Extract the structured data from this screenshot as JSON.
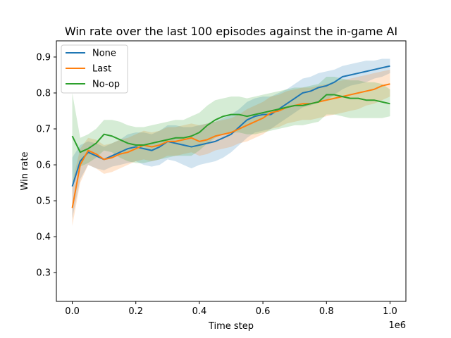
{
  "chart_data": {
    "type": "line",
    "title": "Win rate over the last 100 episodes against the in-game AI",
    "xlabel": "Time step",
    "ylabel": "Win rate",
    "x_offset_label": "1e6",
    "xlim": [
      -0.05,
      1.05
    ],
    "ylim": [
      0.22,
      0.945
    ],
    "x_ticks": [
      0.0,
      0.2,
      0.4,
      0.6,
      0.8,
      1.0
    ],
    "x_tick_labels": [
      "0.0",
      "0.2",
      "0.4",
      "0.6",
      "0.8",
      "1.0"
    ],
    "y_ticks": [
      0.3,
      0.4,
      0.5,
      0.6,
      0.7,
      0.8,
      0.9
    ],
    "y_tick_labels": [
      "0.3",
      "0.4",
      "0.5",
      "0.6",
      "0.7",
      "0.8",
      "0.9"
    ],
    "grid": false,
    "legend_position": "top-left",
    "x": [
      0.0,
      0.025,
      0.05,
      0.075,
      0.1,
      0.125,
      0.15,
      0.175,
      0.2,
      0.225,
      0.25,
      0.275,
      0.3,
      0.325,
      0.35,
      0.375,
      0.4,
      0.425,
      0.45,
      0.475,
      0.5,
      0.525,
      0.55,
      0.575,
      0.6,
      0.625,
      0.65,
      0.675,
      0.7,
      0.725,
      0.75,
      0.775,
      0.8,
      0.825,
      0.85,
      0.875,
      0.9,
      0.925,
      0.95,
      0.975,
      1.0
    ],
    "series": [
      {
        "name": "None",
        "color": "#1f77b4",
        "values": [
          0.54,
          0.61,
          0.635,
          0.625,
          0.615,
          0.625,
          0.635,
          0.645,
          0.65,
          0.645,
          0.64,
          0.65,
          0.665,
          0.66,
          0.655,
          0.65,
          0.655,
          0.66,
          0.665,
          0.675,
          0.685,
          0.705,
          0.725,
          0.735,
          0.74,
          0.74,
          0.755,
          0.77,
          0.785,
          0.8,
          0.805,
          0.815,
          0.82,
          0.83,
          0.845,
          0.85,
          0.855,
          0.86,
          0.865,
          0.87,
          0.875
        ],
        "lower": [
          0.45,
          0.56,
          0.6,
          0.59,
          0.585,
          0.595,
          0.6,
          0.605,
          0.61,
          0.6,
          0.595,
          0.6,
          0.615,
          0.61,
          0.6,
          0.59,
          0.6,
          0.605,
          0.61,
          0.62,
          0.635,
          0.655,
          0.675,
          0.69,
          0.695,
          0.7,
          0.715,
          0.73,
          0.745,
          0.76,
          0.765,
          0.775,
          0.78,
          0.795,
          0.81,
          0.82,
          0.825,
          0.83,
          0.84,
          0.845,
          0.855
        ],
        "upper": [
          0.62,
          0.655,
          0.665,
          0.66,
          0.65,
          0.66,
          0.67,
          0.685,
          0.69,
          0.69,
          0.685,
          0.695,
          0.71,
          0.71,
          0.705,
          0.705,
          0.71,
          0.715,
          0.72,
          0.73,
          0.74,
          0.755,
          0.775,
          0.785,
          0.79,
          0.79,
          0.8,
          0.81,
          0.825,
          0.84,
          0.845,
          0.855,
          0.86,
          0.865,
          0.875,
          0.88,
          0.885,
          0.89,
          0.89,
          0.895,
          0.895
        ]
      },
      {
        "name": "Last",
        "color": "#ff7f0e",
        "values": [
          0.48,
          0.6,
          0.64,
          0.63,
          0.615,
          0.62,
          0.63,
          0.635,
          0.645,
          0.655,
          0.65,
          0.655,
          0.665,
          0.665,
          0.67,
          0.675,
          0.665,
          0.67,
          0.68,
          0.685,
          0.69,
          0.7,
          0.71,
          0.72,
          0.73,
          0.745,
          0.75,
          0.76,
          0.765,
          0.77,
          0.77,
          0.775,
          0.78,
          0.785,
          0.79,
          0.795,
          0.8,
          0.805,
          0.81,
          0.82,
          0.825
        ],
        "lower": [
          0.43,
          0.55,
          0.6,
          0.59,
          0.575,
          0.58,
          0.59,
          0.6,
          0.61,
          0.615,
          0.61,
          0.615,
          0.625,
          0.625,
          0.63,
          0.635,
          0.625,
          0.63,
          0.64,
          0.645,
          0.65,
          0.66,
          0.665,
          0.675,
          0.685,
          0.7,
          0.705,
          0.715,
          0.72,
          0.725,
          0.725,
          0.73,
          0.735,
          0.74,
          0.745,
          0.75,
          0.755,
          0.765,
          0.77,
          0.78,
          0.79
        ],
        "upper": [
          0.55,
          0.645,
          0.675,
          0.67,
          0.655,
          0.66,
          0.67,
          0.675,
          0.685,
          0.695,
          0.69,
          0.695,
          0.705,
          0.705,
          0.71,
          0.715,
          0.71,
          0.715,
          0.72,
          0.725,
          0.73,
          0.74,
          0.755,
          0.765,
          0.775,
          0.79,
          0.795,
          0.805,
          0.81,
          0.815,
          0.815,
          0.82,
          0.825,
          0.83,
          0.835,
          0.84,
          0.845,
          0.85,
          0.855,
          0.86,
          0.865
        ]
      },
      {
        "name": "No-op",
        "color": "#2ca02c",
        "values": [
          0.68,
          0.635,
          0.645,
          0.66,
          0.685,
          0.68,
          0.67,
          0.66,
          0.655,
          0.655,
          0.66,
          0.665,
          0.67,
          0.675,
          0.675,
          0.68,
          0.69,
          0.71,
          0.725,
          0.735,
          0.74,
          0.74,
          0.735,
          0.74,
          0.745,
          0.75,
          0.755,
          0.76,
          0.765,
          0.765,
          0.77,
          0.775,
          0.795,
          0.795,
          0.79,
          0.785,
          0.785,
          0.78,
          0.78,
          0.775,
          0.77
        ],
        "lower": [
          0.55,
          0.595,
          0.605,
          0.62,
          0.64,
          0.635,
          0.62,
          0.61,
          0.605,
          0.605,
          0.61,
          0.615,
          0.62,
          0.625,
          0.625,
          0.625,
          0.64,
          0.66,
          0.675,
          0.685,
          0.69,
          0.69,
          0.685,
          0.685,
          0.69,
          0.695,
          0.7,
          0.705,
          0.71,
          0.71,
          0.715,
          0.72,
          0.74,
          0.74,
          0.735,
          0.73,
          0.73,
          0.73,
          0.73,
          0.73,
          0.735
        ],
        "upper": [
          0.8,
          0.675,
          0.685,
          0.7,
          0.725,
          0.725,
          0.72,
          0.71,
          0.705,
          0.705,
          0.71,
          0.715,
          0.72,
          0.725,
          0.725,
          0.735,
          0.745,
          0.765,
          0.78,
          0.785,
          0.79,
          0.79,
          0.785,
          0.79,
          0.795,
          0.8,
          0.805,
          0.81,
          0.815,
          0.815,
          0.82,
          0.825,
          0.845,
          0.845,
          0.84,
          0.835,
          0.835,
          0.83,
          0.83,
          0.825,
          0.81
        ]
      }
    ]
  }
}
